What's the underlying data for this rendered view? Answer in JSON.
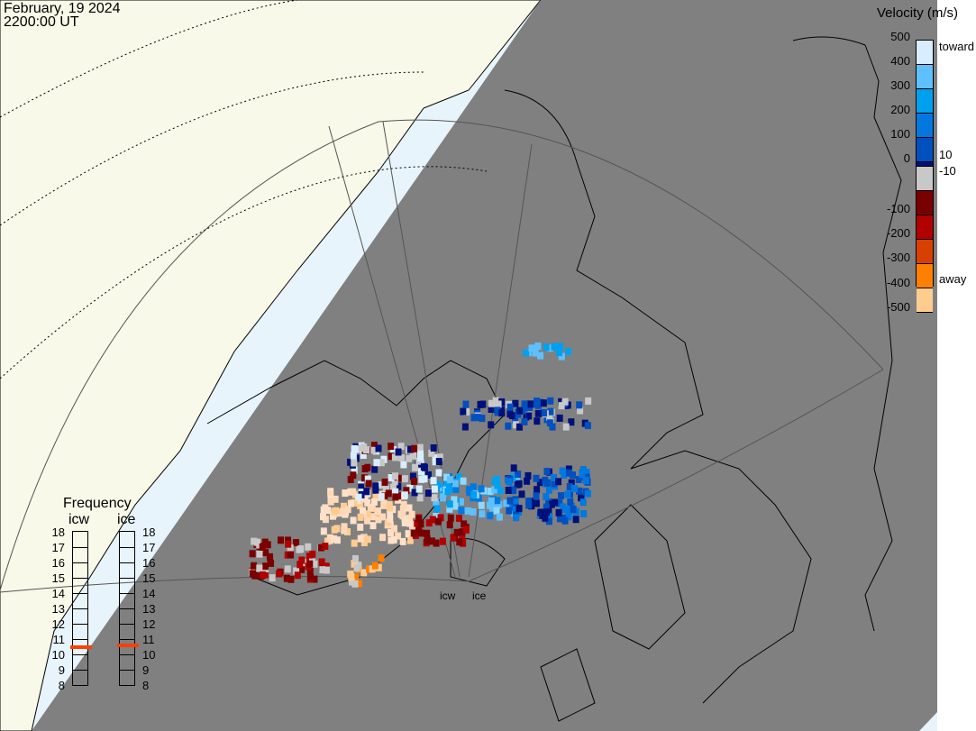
{
  "header": {
    "date": "February, 19 2024",
    "time": "2200:00 UT"
  },
  "colors": {
    "ocean": "#e8f4fc",
    "land": "#f8f9e8",
    "night": "#808080"
  },
  "legend": {
    "title": "Velocity (m/s)",
    "ticks": [
      "500",
      "400",
      "300",
      "200",
      "100",
      "0",
      "-100",
      "-200",
      "-300",
      "-400",
      "-500"
    ],
    "labels": {
      "toward": "toward",
      "pos": "10",
      "neg": "-10",
      "away": "away"
    },
    "colors": [
      "#d8eeff",
      "#5fc0ff",
      "#00a0f0",
      "#0078e0",
      "#0050c0",
      "#00107a",
      "#c8c8c8",
      "#7a0000",
      "#b00000",
      "#d84000",
      "#ff8000",
      "#ffcc90"
    ]
  },
  "frequency": {
    "title": "Frequency",
    "radars": [
      {
        "name": "icw",
        "value_mhz": 10.5
      },
      {
        "name": "ice",
        "value_mhz": 10.6
      }
    ],
    "ticks": [
      "18",
      "17",
      "16",
      "15",
      "14",
      "13",
      "12",
      "11",
      "10",
      "9",
      "8"
    ],
    "marker_color": "#ff4000"
  },
  "sites": [
    {
      "name": "icw"
    },
    {
      "name": "ice"
    }
  ]
}
